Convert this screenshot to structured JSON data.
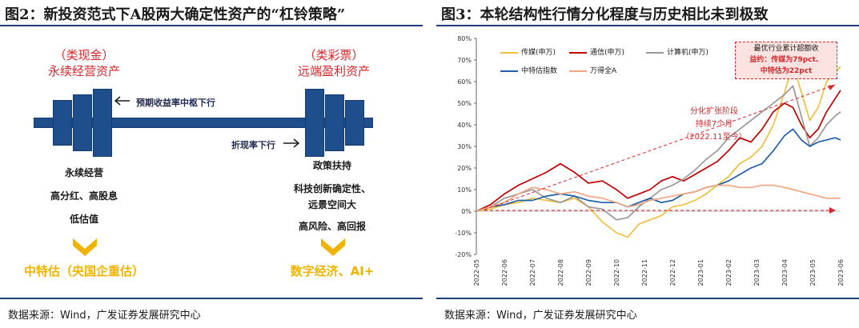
{
  "left": {
    "title": "图2：新投资范式下A股两大确定性资产的“杠铃策略”",
    "left_group": {
      "tag": "（类现金）",
      "name": "永续经营资产"
    },
    "right_group": {
      "tag": "（类彩票）",
      "name": "远端盈利资产"
    },
    "arrow_upper": "预期收益率中枢下行",
    "arrow_lower": "折现率下行",
    "left_points": [
      "永续经营",
      "高分红、高股息",
      "低估值"
    ],
    "right_points": [
      "政策扶持",
      "科技创新确定性、",
      "远景空间大",
      "高风险、高回报"
    ],
    "left_result": "中特估（央国企重估）",
    "right_result": "数字经济、AI+",
    "source": "数据来源：Wind，广发证券发展研究中心"
  },
  "right": {
    "title": "图3：本轮结构性行情分化程度与历史相比未到极致",
    "annotation_box": [
      "最优行业累计超额收",
      "益约：传媒为79pct、",
      "中特估为22pct"
    ],
    "annotation_phase": [
      "分化扩张阶段",
      "持续7个月",
      "（2022.11至今）"
    ],
    "source": "数据来源：Wind，广发证券发展研究中心"
  },
  "colors": {
    "accent_blue": "#1f4e8c",
    "red": "#d8262a",
    "gold": "#f0b400"
  },
  "chart_data": {
    "type": "line",
    "title": "",
    "xlabel": "",
    "ylabel": "",
    "ylim": [
      -20,
      80
    ],
    "yticks": [
      "-20%",
      "-10%",
      "0%",
      "10%",
      "20%",
      "30%",
      "40%",
      "50%",
      "60%",
      "70%",
      "80%"
    ],
    "xticks": [
      "2022-05",
      "2022-06",
      "2022-07",
      "2022-08",
      "2022-09",
      "2022-10",
      "2022-11",
      "2022-12",
      "2023-01",
      "2023-02",
      "2023-03",
      "2023-04",
      "2023-05",
      "2023-06"
    ],
    "grid": false,
    "legend_position": "top",
    "series": [
      {
        "name": "传媒(申万)",
        "color": "#f0c040",
        "values": [
          [
            0,
            0
          ],
          [
            0.5,
            1
          ],
          [
            1,
            3
          ],
          [
            1.5,
            4
          ],
          [
            2,
            6
          ],
          [
            2.5,
            5
          ],
          [
            3,
            4
          ],
          [
            3.5,
            6
          ],
          [
            4,
            2
          ],
          [
            4.5,
            -5
          ],
          [
            5,
            -10
          ],
          [
            5.4,
            -12
          ],
          [
            5.8,
            -6
          ],
          [
            6.2,
            -4
          ],
          [
            6.6,
            -2
          ],
          [
            7,
            2
          ],
          [
            7.4,
            3
          ],
          [
            7.8,
            5
          ],
          [
            8.2,
            8
          ],
          [
            8.6,
            12
          ],
          [
            9,
            16
          ],
          [
            9.4,
            22
          ],
          [
            9.8,
            25
          ],
          [
            10.2,
            30
          ],
          [
            10.6,
            40
          ],
          [
            11,
            55
          ],
          [
            11.3,
            68
          ],
          [
            11.6,
            55
          ],
          [
            11.9,
            42
          ],
          [
            12.2,
            48
          ],
          [
            12.5,
            60
          ],
          [
            12.8,
            64
          ],
          [
            13,
            67
          ]
        ]
      },
      {
        "name": "通信(申万)",
        "color": "#c00000",
        "values": [
          [
            0,
            0
          ],
          [
            0.5,
            3
          ],
          [
            1,
            8
          ],
          [
            1.5,
            12
          ],
          [
            2,
            15
          ],
          [
            2.5,
            18
          ],
          [
            3,
            22
          ],
          [
            3.5,
            18
          ],
          [
            4,
            13
          ],
          [
            4.5,
            14
          ],
          [
            5,
            10
          ],
          [
            5.4,
            6
          ],
          [
            5.8,
            8
          ],
          [
            6.2,
            10
          ],
          [
            6.6,
            14
          ],
          [
            7,
            16
          ],
          [
            7.4,
            14
          ],
          [
            7.8,
            17
          ],
          [
            8.2,
            20
          ],
          [
            8.6,
            23
          ],
          [
            9,
            28
          ],
          [
            9.4,
            34
          ],
          [
            9.8,
            32
          ],
          [
            10.2,
            38
          ],
          [
            10.6,
            46
          ],
          [
            11,
            50
          ],
          [
            11.3,
            48
          ],
          [
            11.6,
            40
          ],
          [
            11.9,
            34
          ],
          [
            12.2,
            38
          ],
          [
            12.5,
            46
          ],
          [
            12.8,
            52
          ],
          [
            13,
            56
          ]
        ]
      },
      {
        "name": "计算机(申万)",
        "color": "#999999",
        "values": [
          [
            0,
            0
          ],
          [
            0.5,
            2
          ],
          [
            1,
            6
          ],
          [
            1.5,
            8
          ],
          [
            2,
            10
          ],
          [
            2.5,
            6
          ],
          [
            3,
            4
          ],
          [
            3.5,
            7
          ],
          [
            4,
            2
          ],
          [
            4.5,
            1
          ],
          [
            5,
            -4
          ],
          [
            5.4,
            -3
          ],
          [
            5.8,
            2
          ],
          [
            6.2,
            6
          ],
          [
            6.6,
            10
          ],
          [
            7,
            12
          ],
          [
            7.4,
            15
          ],
          [
            7.8,
            19
          ],
          [
            8.2,
            24
          ],
          [
            8.6,
            28
          ],
          [
            9,
            34
          ],
          [
            9.4,
            38
          ],
          [
            9.8,
            42
          ],
          [
            10.2,
            46
          ],
          [
            10.6,
            50
          ],
          [
            11,
            54
          ],
          [
            11.3,
            58
          ],
          [
            11.6,
            44
          ],
          [
            11.9,
            30
          ],
          [
            12.2,
            34
          ],
          [
            12.5,
            40
          ],
          [
            12.8,
            44
          ],
          [
            13,
            46
          ]
        ]
      },
      {
        "name": "中特估指数",
        "color": "#1f5fa8",
        "values": [
          [
            0,
            0
          ],
          [
            0.5,
            2
          ],
          [
            1,
            3
          ],
          [
            1.5,
            5
          ],
          [
            2,
            5
          ],
          [
            2.5,
            7
          ],
          [
            3,
            8
          ],
          [
            3.5,
            7
          ],
          [
            4,
            5
          ],
          [
            4.5,
            4
          ],
          [
            5,
            4
          ],
          [
            5.4,
            2
          ],
          [
            5.8,
            4
          ],
          [
            6.2,
            6
          ],
          [
            6.6,
            4
          ],
          [
            7,
            5
          ],
          [
            7.4,
            8
          ],
          [
            7.8,
            9
          ],
          [
            8.2,
            11
          ],
          [
            8.6,
            12
          ],
          [
            9,
            14
          ],
          [
            9.4,
            17
          ],
          [
            9.8,
            20
          ],
          [
            10.2,
            22
          ],
          [
            10.6,
            28
          ],
          [
            11,
            35
          ],
          [
            11.3,
            38
          ],
          [
            11.6,
            33
          ],
          [
            11.9,
            30
          ],
          [
            12.2,
            32
          ],
          [
            12.5,
            33
          ],
          [
            12.8,
            34
          ],
          [
            13,
            33
          ]
        ]
      },
      {
        "name": "万得全A",
        "color": "#f4a582",
        "values": [
          [
            0,
            0
          ],
          [
            0.5,
            2
          ],
          [
            1,
            4
          ],
          [
            1.5,
            8
          ],
          [
            2,
            11
          ],
          [
            2.5,
            10
          ],
          [
            3,
            8
          ],
          [
            3.5,
            9
          ],
          [
            4,
            7
          ],
          [
            4.5,
            6
          ],
          [
            5,
            4
          ],
          [
            5.4,
            2
          ],
          [
            5.8,
            3
          ],
          [
            6.2,
            5
          ],
          [
            6.6,
            6
          ],
          [
            7,
            7
          ],
          [
            7.4,
            8
          ],
          [
            7.8,
            9
          ],
          [
            8.2,
            11
          ],
          [
            8.6,
            12
          ],
          [
            9,
            12
          ],
          [
            9.4,
            11
          ],
          [
            9.8,
            11
          ],
          [
            10.2,
            12
          ],
          [
            10.6,
            12
          ],
          [
            11,
            11
          ],
          [
            11.3,
            10
          ],
          [
            11.6,
            9
          ],
          [
            11.9,
            8
          ],
          [
            12.2,
            7
          ],
          [
            12.5,
            6
          ],
          [
            12.8,
            6
          ],
          [
            13,
            6
          ]
        ]
      }
    ]
  }
}
